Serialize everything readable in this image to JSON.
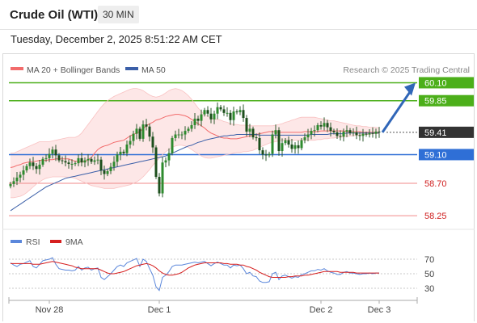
{
  "header": {
    "title": "Crude Oil (WTI)",
    "timeframe": "30 MIN"
  },
  "datetime": "Tuesday, December 2, 2025 8:51:22 AM CET",
  "legend": {
    "ma20": "MA 20 + Bollinger Bands",
    "ma50": "MA 50",
    "copyright": "Research © 2025 Trading Central"
  },
  "colors": {
    "resistance": "#4caf1a",
    "pivot": "#2f6fd6",
    "support": "#f08a8a",
    "candle_up": "#2e8b2e",
    "candle_down": "#1c4f1c",
    "ma20": "#f26b6b",
    "ma50": "#3b5fa8",
    "bands_fill": "#fde3e3",
    "arrow": "#3066b8",
    "rsi": "#5b87db",
    "rsi_ma": "#d61f1f",
    "last_price_tag": "#333333"
  },
  "price_axis": {
    "min": 58.15,
    "max": 60.15
  },
  "levels": [
    {
      "name": "resistance-2",
      "value": 60.1,
      "label": "60.10",
      "type": "resistance",
      "tag": true
    },
    {
      "name": "resistance-1",
      "value": 59.85,
      "label": "59.85",
      "type": "resistance",
      "tag": true
    },
    {
      "name": "last-price",
      "value": 59.41,
      "label": "59.41",
      "type": "last",
      "tag": true
    },
    {
      "name": "pivot",
      "value": 59.1,
      "label": "59.10",
      "type": "pivot",
      "tag": true
    },
    {
      "name": "support-1",
      "value": 58.7,
      "label": "58.70",
      "type": "support",
      "tag": false
    },
    {
      "name": "support-2",
      "value": 58.25,
      "label": "58.25",
      "type": "support",
      "tag": false
    }
  ],
  "rsi_panel": {
    "legend_rsi": "RSI",
    "legend_ma": "9MA",
    "ticks": [
      70,
      50,
      30
    ],
    "range": [
      20,
      80
    ]
  },
  "x_axis": {
    "labels": [
      {
        "label": "Nov 28",
        "index": 12
      },
      {
        "label": "Dec 1",
        "index": 46
      },
      {
        "label": "Dec 2",
        "index": 96
      },
      {
        "label": "Dec 3",
        "index": 114
      }
    ]
  },
  "chart_data": {
    "type": "candlestick",
    "title": "Crude Oil (WTI)",
    "interval": "30 MIN",
    "close": [
      58.69,
      58.73,
      58.78,
      58.82,
      58.88,
      58.94,
      58.99,
      58.94,
      58.9,
      58.96,
      59.04,
      59.05,
      59.11,
      59.17,
      59.09,
      59.02,
      59.01,
      58.99,
      58.97,
      58.97,
      58.98,
      59.05,
      58.99,
      59.02,
      59.04,
      59.0,
      59.02,
      59.03,
      58.88,
      58.83,
      58.87,
      58.93,
      59.0,
      59.1,
      59.14,
      59.12,
      59.24,
      59.29,
      59.39,
      59.46,
      59.32,
      59.52,
      59.49,
      59.35,
      59.2,
      58.79,
      58.56,
      58.99,
      59.02,
      59.12,
      59.33,
      59.38,
      59.38,
      59.38,
      59.43,
      59.46,
      59.51,
      59.6,
      59.57,
      59.66,
      59.72,
      59.67,
      59.59,
      59.67,
      59.76,
      59.73,
      59.68,
      59.68,
      59.58,
      59.7,
      59.69,
      59.72,
      59.61,
      59.42,
      59.46,
      59.34,
      59.33,
      59.16,
      59.1,
      59.09,
      59.11,
      59.38,
      59.44,
      59.15,
      59.26,
      59.3,
      59.24,
      59.18,
      59.23,
      59.19,
      59.3,
      59.34,
      59.38,
      59.43,
      59.44,
      59.51,
      59.49,
      59.54,
      59.48,
      59.43,
      59.41,
      59.36,
      59.35,
      59.42,
      59.44,
      59.4,
      59.41,
      59.37,
      59.36,
      59.39,
      59.38,
      59.4,
      59.39,
      59.42,
      59.41
    ],
    "ma20": [
      58.92,
      58.93,
      58.95,
      58.96,
      58.98,
      58.99,
      59.0,
      59.0,
      59.01,
      59.02,
      59.02,
      59.02,
      59.03,
      59.03,
      59.04,
      59.04,
      59.04,
      59.04,
      59.04,
      59.02,
      59.01,
      59.0,
      59.0,
      59.0,
      59.03,
      59.06,
      59.12,
      59.17,
      59.2,
      59.22,
      59.23,
      59.25,
      59.27,
      59.28,
      59.29,
      59.3,
      59.33,
      59.36,
      59.38,
      59.4,
      59.42,
      59.46,
      59.5,
      59.53,
      59.55,
      59.58,
      59.59,
      59.61,
      59.63,
      59.64,
      59.65,
      59.66,
      59.66,
      59.65,
      59.64,
      59.62,
      59.59,
      59.56,
      59.53,
      59.5,
      59.47,
      59.43,
      59.4,
      59.38,
      59.36,
      59.34,
      59.33,
      59.33,
      59.32,
      59.32,
      59.32,
      59.33,
      59.34,
      59.35,
      59.36,
      59.37,
      59.38,
      59.39,
      59.4,
      59.41,
      59.42,
      59.42,
      59.42,
      59.41,
      59.41,
      59.41,
      59.41,
      59.41,
      59.41,
      59.41,
      59.41,
      59.42,
      59.42,
      59.42,
      59.42,
      59.42,
      59.43,
      59.43,
      59.43,
      59.43,
      59.43,
      59.43,
      59.43,
      59.43,
      59.42,
      59.42,
      59.42,
      59.42,
      59.42,
      59.41,
      59.41,
      59.41,
      59.41,
      59.41,
      59.41
    ],
    "band_upper": [
      59.12,
      59.12,
      59.14,
      59.16,
      59.18,
      59.2,
      59.22,
      59.24,
      59.26,
      59.28,
      59.28,
      59.28,
      59.28,
      59.29,
      59.3,
      59.31,
      59.32,
      59.33,
      59.34,
      59.34,
      59.34,
      59.36,
      59.4,
      59.46,
      59.52,
      59.58,
      59.64,
      59.7,
      59.76,
      59.81,
      59.85,
      59.88,
      59.91,
      59.93,
      59.95,
      59.97,
      59.99,
      60.01,
      60.02,
      60.02,
      60.01,
      59.99,
      59.96,
      59.93,
      59.91,
      59.9,
      59.91,
      59.93,
      59.96,
      59.99,
      60.01,
      60.02,
      60.01,
      59.99,
      59.96,
      59.92,
      59.87,
      59.81,
      59.75,
      59.7,
      59.66,
      59.63,
      59.61,
      59.6,
      59.59,
      59.58,
      59.56,
      59.55,
      59.53,
      59.52,
      59.52,
      59.51,
      59.51,
      59.51,
      59.5,
      59.5,
      59.5,
      59.5,
      59.5,
      59.5,
      59.5,
      59.5,
      59.51,
      59.52,
      59.53,
      59.55,
      59.56,
      59.58,
      59.59,
      59.61,
      59.62,
      59.62,
      59.62,
      59.62,
      59.62,
      59.61,
      59.6,
      59.59,
      59.58,
      59.57,
      59.57,
      59.56,
      59.55,
      59.54,
      59.53,
      59.52,
      59.51,
      59.5,
      59.5,
      59.49,
      59.49,
      59.48,
      59.48,
      59.48,
      59.47
    ],
    "band_lower": [
      58.5,
      58.5,
      58.51,
      58.52,
      58.54,
      58.57,
      58.61,
      58.65,
      58.69,
      58.72,
      58.75,
      58.77,
      58.78,
      58.79,
      58.79,
      58.79,
      58.79,
      58.79,
      58.78,
      58.78,
      58.77,
      58.75,
      58.73,
      58.71,
      58.69,
      58.67,
      58.66,
      58.65,
      58.64,
      58.63,
      58.63,
      58.63,
      58.63,
      58.64,
      58.65,
      58.66,
      58.67,
      58.68,
      58.7,
      58.72,
      58.75,
      58.79,
      58.84,
      58.89,
      58.95,
      59.0,
      59.05,
      59.1,
      59.14,
      59.17,
      59.2,
      59.22,
      59.23,
      59.23,
      59.22,
      59.2,
      59.17,
      59.14,
      59.11,
      59.08,
      59.06,
      59.05,
      59.05,
      59.06,
      59.07,
      59.08,
      59.09,
      59.1,
      59.11,
      59.12,
      59.13,
      59.13,
      59.14,
      59.14,
      59.15,
      59.16,
      59.18,
      59.2,
      59.22,
      59.24,
      59.26,
      59.27,
      59.28,
      59.29,
      59.3,
      59.3,
      59.3,
      59.3,
      59.3,
      59.3,
      59.3,
      59.3,
      59.3,
      59.3,
      59.3,
      59.31,
      59.31,
      59.32,
      59.32,
      59.33,
      59.33,
      59.34,
      59.34,
      59.35,
      59.35,
      59.36,
      59.36,
      59.37,
      59.37,
      59.38,
      59.38,
      59.38,
      59.39,
      59.39,
      59.39
    ],
    "ma50": [
      58.32,
      58.35,
      58.38,
      58.41,
      58.44,
      58.47,
      58.5,
      58.53,
      58.56,
      58.59,
      58.62,
      58.65,
      58.67,
      58.69,
      58.71,
      58.73,
      58.75,
      58.77,
      58.78,
      58.79,
      58.8,
      58.81,
      58.82,
      58.83,
      58.84,
      58.85,
      58.86,
      58.87,
      58.88,
      58.89,
      58.9,
      58.91,
      58.92,
      58.93,
      58.94,
      58.95,
      58.96,
      58.97,
      58.98,
      58.99,
      59.0,
      59.01,
      59.02,
      59.03,
      59.04,
      59.05,
      59.06,
      59.07,
      59.08,
      59.1,
      59.12,
      59.14,
      59.16,
      59.18,
      59.2,
      59.22,
      59.23,
      59.25,
      59.27,
      59.28,
      59.3,
      59.31,
      59.32,
      59.33,
      59.34,
      59.35,
      59.36,
      59.36,
      59.37,
      59.37,
      59.38,
      59.38,
      59.38,
      59.38,
      59.38,
      59.38,
      59.38,
      59.37,
      59.37,
      59.37,
      59.37,
      59.37,
      59.37,
      59.37,
      59.37,
      59.37,
      59.37,
      59.37,
      59.37,
      59.37,
      59.37,
      59.37,
      59.37,
      59.38,
      59.38,
      59.38,
      59.38,
      59.38,
      59.38,
      59.39,
      59.39,
      59.39,
      59.39,
      59.39,
      59.4,
      59.4,
      59.4,
      59.4,
      59.4,
      59.4,
      59.4,
      59.4,
      59.4,
      59.4,
      59.4
    ],
    "projection": {
      "from": 59.41,
      "to": 60.1
    },
    "rsi": [
      65,
      62,
      60,
      63,
      64,
      66,
      68,
      60,
      58,
      63,
      68,
      69,
      70,
      72,
      63,
      57,
      56,
      55,
      55,
      54,
      55,
      60,
      55,
      58,
      59,
      55,
      57,
      58,
      45,
      42,
      46,
      50,
      55,
      60,
      62,
      60,
      65,
      67,
      69,
      71,
      60,
      70,
      67,
      57,
      48,
      32,
      27,
      45,
      48,
      53,
      60,
      62,
      62,
      62,
      63,
      64,
      65,
      66,
      65,
      66,
      67,
      64,
      61,
      64,
      66,
      64,
      62,
      62,
      58,
      62,
      61,
      62,
      57,
      50,
      52,
      47,
      46,
      40,
      38,
      38,
      39,
      50,
      52,
      42,
      47,
      48,
      46,
      44,
      46,
      45,
      49,
      50,
      52,
      54,
      54,
      56,
      55,
      57,
      54,
      52,
      51,
      49,
      49,
      52,
      53,
      51,
      51,
      50,
      49,
      50,
      50,
      51,
      50,
      51,
      51
    ],
    "rsi_ma": [
      64,
      64,
      64,
      64,
      64,
      64,
      64,
      63,
      63,
      63,
      64,
      65,
      66,
      67,
      66,
      65,
      64,
      63,
      62,
      61,
      59,
      58,
      57,
      57,
      57,
      57,
      57,
      57,
      55,
      53,
      51,
      50,
      50,
      51,
      52,
      53,
      55,
      57,
      59,
      61,
      62,
      63,
      64,
      63,
      61,
      58,
      54,
      51,
      49,
      48,
      48,
      49,
      50,
      52,
      55,
      58,
      60,
      62,
      63,
      64,
      65,
      65,
      65,
      65,
      65,
      65,
      64,
      64,
      63,
      63,
      63,
      62,
      62,
      60,
      59,
      57,
      55,
      52,
      50,
      48,
      46,
      45,
      45,
      45,
      45,
      45,
      46,
      46,
      47,
      47,
      47,
      48,
      48,
      49,
      50,
      51,
      52,
      53,
      53,
      53,
      53,
      53,
      52,
      52,
      52,
      52,
      52,
      51,
      51,
      51,
      51,
      51,
      51,
      51,
      51
    ],
    "rsi_ticks": [
      70,
      50,
      30
    ],
    "x_tick_labels": [
      "Nov 28",
      "Dec 1",
      "Dec 2",
      "Dec 3"
    ]
  }
}
